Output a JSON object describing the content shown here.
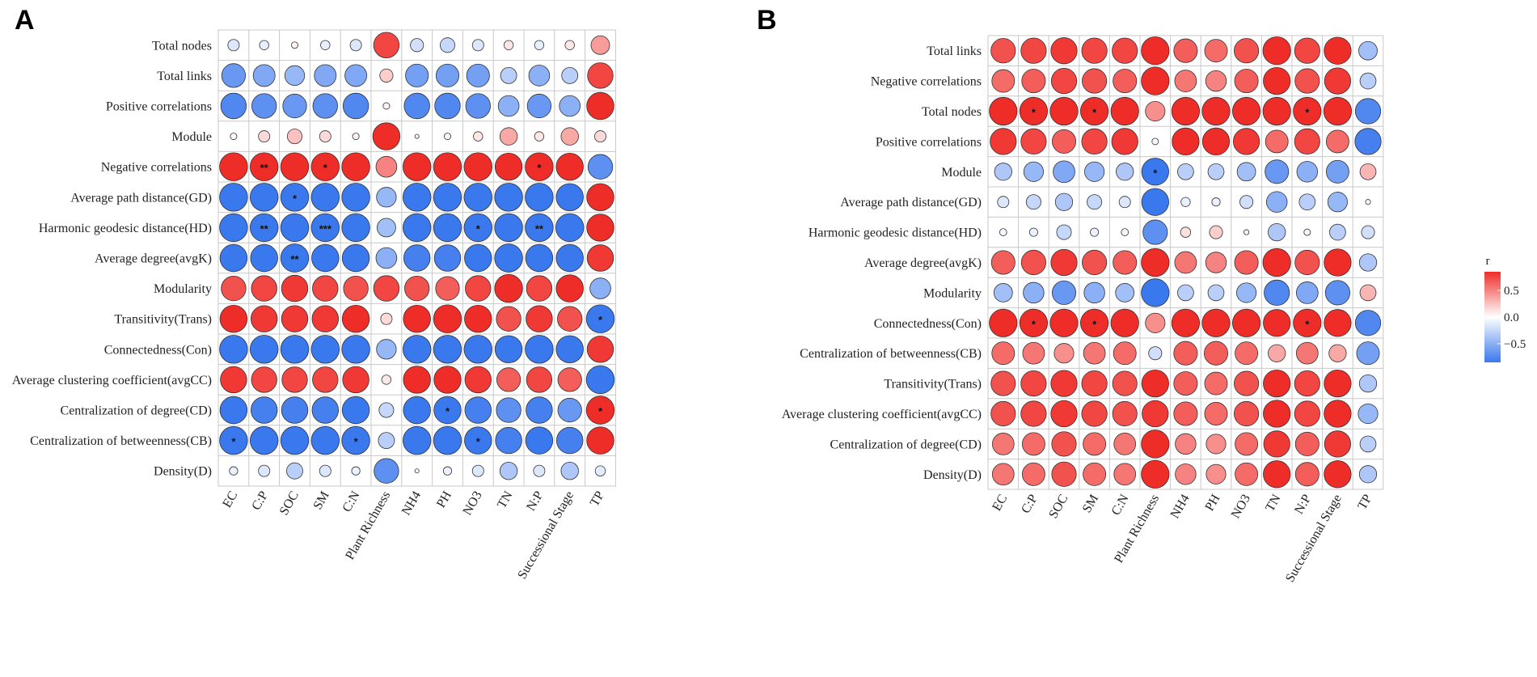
{
  "chart_data": [
    {
      "type": "heatmap",
      "panel": "A",
      "columns": [
        "EC",
        "C:P",
        "SOC",
        "SM",
        "C:N",
        "Plant Richness",
        "NH4",
        "PH",
        "NO3",
        "TN",
        "N:P",
        "Successional Stage",
        "TP"
      ],
      "rows": [
        "Total nodes",
        "Total links",
        "Positive correlations",
        "Module",
        "Negative correlations",
        "Average path distance(GD)",
        "Harmonic geodesic distance(HD)",
        "Average degree(avgK)",
        "Modularity",
        "Transitivity(Trans)",
        "Connectedness(Con)",
        "Average clustering coefficient(avgCC)",
        "Centralization of degree(CD)",
        "Centralization of betweenness(CB)",
        "Density(D)"
      ],
      "values": [
        [
          -0.15,
          -0.1,
          0.05,
          -0.1,
          -0.15,
          0.75,
          -0.2,
          -0.25,
          -0.15,
          0.1,
          -0.1,
          0.1,
          0.4
        ],
        [
          -0.65,
          -0.55,
          -0.45,
          -0.55,
          -0.55,
          0.2,
          -0.6,
          -0.6,
          -0.6,
          -0.3,
          -0.5,
          -0.3,
          0.75
        ],
        [
          -0.75,
          -0.7,
          -0.65,
          -0.7,
          -0.75,
          0.05,
          -0.75,
          -0.75,
          -0.7,
          -0.5,
          -0.65,
          -0.5,
          0.85
        ],
        [
          0.05,
          0.15,
          0.25,
          0.15,
          0.05,
          0.85,
          0.02,
          0.05,
          0.1,
          0.35,
          0.1,
          0.35,
          0.15
        ],
        [
          0.9,
          0.9,
          0.9,
          0.9,
          0.9,
          0.5,
          0.9,
          0.9,
          0.9,
          0.85,
          0.9,
          0.85,
          -0.7
        ],
        [
          -0.9,
          -0.9,
          -0.9,
          -0.9,
          -0.9,
          -0.45,
          -0.9,
          -0.9,
          -0.9,
          -0.9,
          -0.9,
          -0.85,
          0.85
        ],
        [
          -0.9,
          -0.9,
          -0.9,
          -0.9,
          -0.9,
          -0.4,
          -0.9,
          -0.9,
          -0.9,
          -0.9,
          -0.9,
          -0.9,
          0.85
        ],
        [
          -0.85,
          -0.85,
          -0.9,
          -0.85,
          -0.85,
          -0.5,
          -0.8,
          -0.8,
          -0.85,
          -0.9,
          -0.85,
          -0.85,
          0.8
        ],
        [
          0.7,
          0.75,
          0.8,
          0.75,
          0.7,
          0.75,
          0.7,
          0.65,
          0.75,
          0.9,
          0.75,
          0.85,
          -0.5
        ],
        [
          0.85,
          0.8,
          0.8,
          0.8,
          0.85,
          0.15,
          0.85,
          0.9,
          0.85,
          0.7,
          0.8,
          0.7,
          -0.9
        ],
        [
          -0.9,
          -0.9,
          -0.9,
          -0.9,
          -0.9,
          -0.45,
          -0.9,
          -0.9,
          -0.9,
          -0.85,
          -0.9,
          -0.85,
          0.8
        ],
        [
          0.8,
          0.75,
          0.75,
          0.75,
          0.8,
          0.1,
          0.85,
          0.85,
          0.8,
          0.65,
          0.75,
          0.65,
          -0.9
        ],
        [
          -0.85,
          -0.8,
          -0.8,
          -0.8,
          -0.85,
          -0.25,
          -0.85,
          -0.85,
          -0.8,
          -0.7,
          -0.8,
          -0.65,
          0.9
        ],
        [
          -0.9,
          -0.9,
          -0.9,
          -0.9,
          -0.9,
          -0.3,
          -0.9,
          -0.9,
          -0.85,
          -0.8,
          -0.85,
          -0.8,
          0.85
        ],
        [
          -0.08,
          -0.15,
          -0.3,
          -0.15,
          -0.08,
          -0.7,
          -0.02,
          -0.08,
          -0.15,
          -0.35,
          -0.15,
          -0.35,
          -0.12
        ]
      ],
      "significance": [
        [
          "",
          "",
          "",
          "",
          "",
          "",
          "",
          "",
          "",
          "",
          "",
          "",
          ""
        ],
        [
          "",
          "",
          "",
          "",
          "",
          "",
          "",
          "",
          "",
          "",
          "",
          "",
          ""
        ],
        [
          "",
          "",
          "",
          "",
          "",
          "",
          "",
          "",
          "",
          "",
          "",
          "",
          ""
        ],
        [
          "",
          "",
          "",
          "",
          "",
          "",
          "",
          "",
          "",
          "",
          "",
          "",
          ""
        ],
        [
          "",
          "**",
          "",
          "*",
          "",
          "",
          "",
          "",
          "",
          "",
          "*",
          "",
          ""
        ],
        [
          "",
          "",
          "*",
          "",
          "",
          "",
          "",
          "",
          "",
          "",
          "",
          "",
          ""
        ],
        [
          "",
          "**",
          "",
          "***",
          "",
          "",
          "",
          "",
          "*",
          "",
          "**",
          "",
          ""
        ],
        [
          "",
          "",
          "**",
          "",
          "",
          "",
          "",
          "",
          "",
          "",
          "",
          "",
          ""
        ],
        [
          "",
          "",
          "",
          "",
          "",
          "",
          "",
          "",
          "",
          "",
          "",
          "",
          ""
        ],
        [
          "",
          "",
          "",
          "",
          "",
          "",
          "",
          "",
          "",
          "",
          "",
          "",
          "*"
        ],
        [
          "",
          "",
          "",
          "",
          "",
          "",
          "",
          "",
          "",
          "",
          "",
          "",
          ""
        ],
        [
          "",
          "",
          "",
          "",
          "",
          "",
          "",
          "",
          "",
          "",
          "",
          "",
          ""
        ],
        [
          "",
          "",
          "",
          "",
          "",
          "",
          "",
          "*",
          "",
          "",
          "",
          "",
          "*"
        ],
        [
          "*",
          "",
          "",
          "",
          "*",
          "",
          "",
          "",
          "*",
          "",
          "",
          "",
          ""
        ],
        [
          "",
          "",
          "",
          "",
          "",
          "",
          "",
          "",
          "",
          "",
          "",
          "",
          ""
        ]
      ]
    },
    {
      "type": "heatmap",
      "panel": "B",
      "columns": [
        "EC",
        "C:P",
        "SOC",
        "SM",
        "C:N",
        "Plant Richness",
        "NH4",
        "PH",
        "NO3",
        "TN",
        "N:P",
        "Successional Stage",
        "TP"
      ],
      "rows": [
        "Total links",
        "Negative correlations",
        "Total nodes",
        "Positive correlations",
        "Module",
        "Average path distance(GD)",
        "Harmonic geodesic distance(HD)",
        "Average degree(avgK)",
        "Modularity",
        "Connectedness(Con)",
        "Centralization of betweenness(CB)",
        "Transitivity(Trans)",
        "Average clustering coefficient(avgCC)",
        "Centralization of degree(CD)",
        "Density(D)"
      ],
      "values": [
        [
          0.7,
          0.75,
          0.8,
          0.75,
          0.75,
          0.9,
          0.65,
          0.6,
          0.7,
          0.9,
          0.75,
          0.85,
          -0.4
        ],
        [
          0.6,
          0.65,
          0.75,
          0.7,
          0.65,
          0.9,
          0.55,
          0.5,
          0.65,
          0.85,
          0.7,
          0.8,
          -0.3
        ],
        [
          0.9,
          0.9,
          0.9,
          0.9,
          0.9,
          0.45,
          0.9,
          0.9,
          0.9,
          0.9,
          0.9,
          0.9,
          -0.75
        ],
        [
          0.8,
          0.75,
          0.65,
          0.75,
          0.8,
          -0.05,
          0.85,
          0.85,
          0.8,
          0.6,
          0.75,
          0.6,
          -0.8
        ],
        [
          -0.35,
          -0.45,
          -0.55,
          -0.45,
          -0.35,
          -0.85,
          -0.3,
          -0.3,
          -0.4,
          -0.65,
          -0.5,
          -0.6,
          0.3
        ],
        [
          -0.15,
          -0.25,
          -0.35,
          -0.25,
          -0.15,
          -0.85,
          -0.1,
          -0.08,
          -0.2,
          -0.5,
          -0.3,
          -0.45,
          0.03
        ],
        [
          -0.06,
          -0.08,
          -0.25,
          -0.08,
          -0.06,
          -0.7,
          0.12,
          0.2,
          0.03,
          -0.35,
          -0.05,
          -0.3,
          -0.2
        ],
        [
          0.65,
          0.7,
          0.8,
          0.7,
          0.65,
          0.9,
          0.55,
          0.5,
          0.65,
          0.9,
          0.7,
          0.85,
          -0.35
        ],
        [
          -0.4,
          -0.5,
          -0.65,
          -0.5,
          -0.4,
          -0.9,
          -0.3,
          -0.3,
          -0.45,
          -0.75,
          -0.55,
          -0.7,
          0.3
        ],
        [
          0.9,
          0.9,
          0.9,
          0.9,
          0.9,
          0.45,
          0.9,
          0.9,
          0.9,
          0.85,
          0.9,
          0.85,
          -0.75
        ],
        [
          0.6,
          0.55,
          0.45,
          0.55,
          0.6,
          -0.2,
          0.65,
          0.65,
          0.6,
          0.35,
          0.55,
          0.35,
          -0.6
        ],
        [
          0.7,
          0.75,
          0.8,
          0.75,
          0.7,
          0.85,
          0.65,
          0.6,
          0.7,
          0.85,
          0.75,
          0.85,
          -0.35
        ],
        [
          0.7,
          0.75,
          0.8,
          0.75,
          0.7,
          0.8,
          0.65,
          0.6,
          0.7,
          0.85,
          0.75,
          0.85,
          -0.45
        ],
        [
          0.55,
          0.6,
          0.7,
          0.6,
          0.55,
          0.9,
          0.5,
          0.45,
          0.6,
          0.8,
          0.65,
          0.8,
          -0.3
        ],
        [
          0.55,
          0.6,
          0.7,
          0.6,
          0.55,
          0.9,
          0.5,
          0.45,
          0.6,
          0.85,
          0.65,
          0.85,
          -0.35
        ]
      ],
      "significance": [
        [
          "",
          "",
          "",
          "",
          "",
          "",
          "",
          "",
          "",
          "",
          "",
          "",
          ""
        ],
        [
          "",
          "",
          "",
          "",
          "",
          "",
          "",
          "",
          "",
          "",
          "",
          "",
          ""
        ],
        [
          "",
          "*",
          "",
          "*",
          "",
          "",
          "",
          "",
          "",
          "",
          "*",
          "",
          ""
        ],
        [
          "",
          "",
          "",
          "",
          "",
          "",
          "",
          "",
          "",
          "",
          "",
          "",
          ""
        ],
        [
          "",
          "",
          "",
          "",
          "",
          "*",
          "",
          "",
          "",
          "",
          "",
          "",
          ""
        ],
        [
          "",
          "",
          "",
          "",
          "",
          "",
          "",
          "",
          "",
          "",
          "",
          "",
          ""
        ],
        [
          "",
          "",
          "",
          "",
          "",
          "",
          "",
          "",
          "",
          "",
          "",
          "",
          ""
        ],
        [
          "",
          "",
          "",
          "",
          "",
          "",
          "",
          "",
          "",
          "",
          "",
          "",
          ""
        ],
        [
          "",
          "",
          "",
          "",
          "",
          "",
          "",
          "",
          "",
          "",
          "",
          "",
          ""
        ],
        [
          "",
          "*",
          "",
          "*",
          "",
          "",
          "",
          "",
          "",
          "",
          "*",
          "",
          ""
        ],
        [
          "",
          "",
          "",
          "",
          "",
          "",
          "",
          "",
          "",
          "",
          "",
          "",
          ""
        ],
        [
          "",
          "",
          "",
          "",
          "",
          "",
          "",
          "",
          "",
          "",
          "",
          "",
          ""
        ],
        [
          "",
          "",
          "",
          "",
          "",
          "",
          "",
          "",
          "",
          "",
          "",
          "",
          ""
        ],
        [
          "",
          "",
          "",
          "",
          "",
          "",
          "",
          "",
          "",
          "",
          "",
          "",
          ""
        ],
        [
          "",
          "",
          "",
          "",
          "",
          "",
          "",
          "",
          "",
          "",
          "",
          "",
          ""
        ]
      ]
    }
  ],
  "legend": {
    "title": "r",
    "ticks": [
      {
        "value": 0.5,
        "label": "0.5"
      },
      {
        "value": 0.0,
        "label": "0.0"
      },
      {
        "value": -0.5,
        "label": "−0.5"
      }
    ],
    "range": [
      -0.85,
      0.85
    ]
  },
  "colors": {
    "negative": "#3a78ee",
    "neutral": "#ffffff",
    "positive": "#ef2d28",
    "grid": "#c8c8c8",
    "circle_stroke": "#333333"
  }
}
